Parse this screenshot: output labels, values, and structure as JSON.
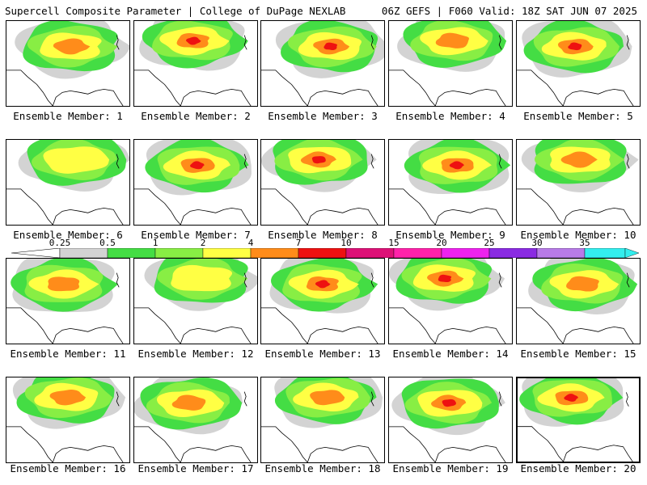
{
  "header": {
    "title": "Supercell Composite Parameter | College of DuPage NEXLAB",
    "run_info": "06Z GEFS | F060 Valid: 18Z SAT JUN 07 2025"
  },
  "panels": [
    {
      "label": "Ensemble Member: 1",
      "peak": "orange",
      "selected": false
    },
    {
      "label": "Ensemble Member: 2",
      "peak": "red",
      "selected": false
    },
    {
      "label": "Ensemble Member: 3",
      "peak": "red",
      "selected": false
    },
    {
      "label": "Ensemble Member: 4",
      "peak": "orange",
      "selected": false
    },
    {
      "label": "Ensemble Member: 5",
      "peak": "red",
      "selected": false
    },
    {
      "label": "Ensemble Member: 6",
      "peak": "yellow",
      "selected": false
    },
    {
      "label": "Ensemble Member: 7",
      "peak": "red",
      "selected": false
    },
    {
      "label": "Ensemble Member: 8",
      "peak": "red",
      "selected": false
    },
    {
      "label": "Ensemble Member: 9",
      "peak": "red",
      "selected": false
    },
    {
      "label": "Ensemble Member: 10",
      "peak": "orange",
      "selected": false
    },
    {
      "label": "Ensemble Member: 11",
      "peak": "orange",
      "selected": false
    },
    {
      "label": "Ensemble Member: 12",
      "peak": "yellow",
      "selected": false
    },
    {
      "label": "Ensemble Member: 13",
      "peak": "red",
      "selected": false
    },
    {
      "label": "Ensemble Member: 14",
      "peak": "red",
      "selected": false
    },
    {
      "label": "Ensemble Member: 15",
      "peak": "orange",
      "selected": false
    },
    {
      "label": "Ensemble Member: 16",
      "peak": "orange",
      "selected": false
    },
    {
      "label": "Ensemble Member: 17",
      "peak": "orange",
      "selected": false
    },
    {
      "label": "Ensemble Member: 18",
      "peak": "orange",
      "selected": false
    },
    {
      "label": "Ensemble Member: 19",
      "peak": "red",
      "selected": false
    },
    {
      "label": "Ensemble Member: 20",
      "peak": "red",
      "selected": true
    }
  ],
  "colorbar": {
    "ticks": [
      "0.25",
      "0.5",
      "1",
      "2",
      "4",
      "7",
      "10",
      "15",
      "20",
      "25",
      "30",
      "35"
    ],
    "colors": [
      "#d3d3d3",
      "#44dd44",
      "#88ee44",
      "#ffff44",
      "#ff8c1a",
      "#ee1111",
      "#dd1177",
      "#ff22aa",
      "#ee22ee",
      "#8a2be2",
      "#b87be8",
      "#33eeee"
    ]
  }
}
